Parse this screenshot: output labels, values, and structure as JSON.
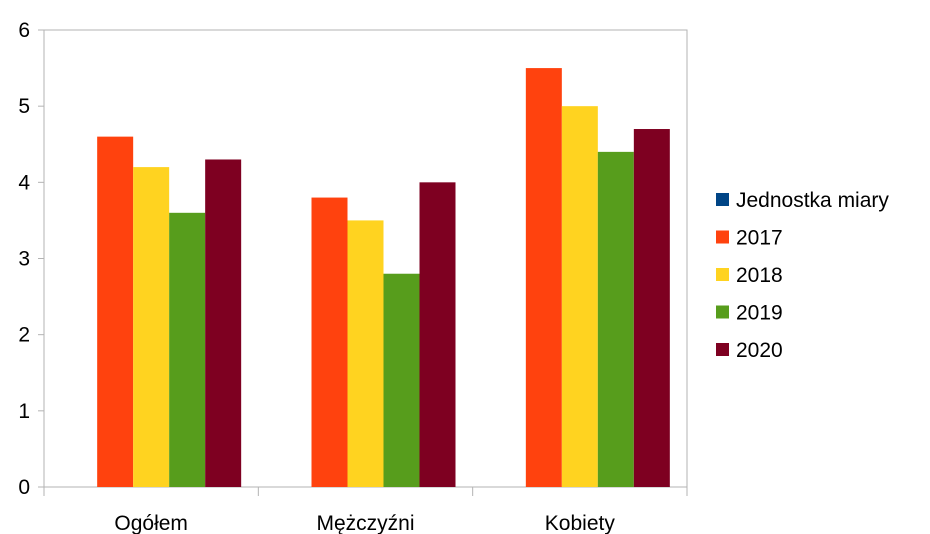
{
  "chart_data": {
    "type": "bar",
    "title": "",
    "xlabel": "",
    "ylabel": "",
    "categories": [
      "Ogółem",
      "Mężczyźni",
      "Kobiety"
    ],
    "ylim": [
      0,
      6
    ],
    "yticks": [
      "0",
      "1",
      "2",
      "3",
      "4",
      "5",
      "6"
    ],
    "grid": false,
    "legend_position": "right",
    "series": [
      {
        "name": "Jednostka miary",
        "color": "#004586",
        "values": [
          null,
          null,
          null
        ]
      },
      {
        "name": "2017",
        "color": "#ff420e",
        "values": [
          4.6,
          3.8,
          5.5
        ]
      },
      {
        "name": "2018",
        "color": "#ffd320",
        "values": [
          4.2,
          3.5,
          5.0
        ]
      },
      {
        "name": "2019",
        "color": "#579d1c",
        "values": [
          3.6,
          2.8,
          4.4
        ]
      },
      {
        "name": "2020",
        "color": "#7e0021",
        "values": [
          4.3,
          4.0,
          4.7
        ]
      }
    ]
  }
}
